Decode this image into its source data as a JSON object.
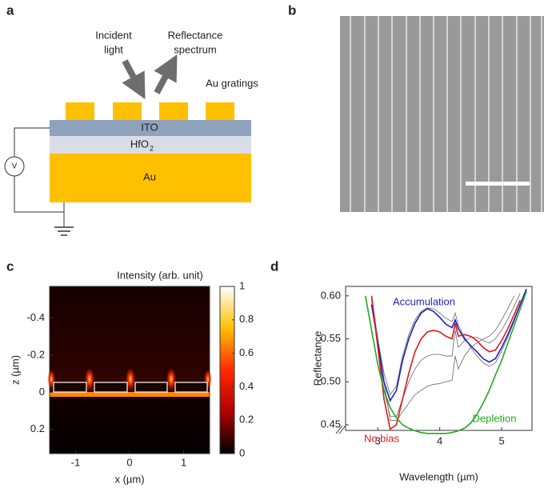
{
  "panel_labels": [
    "a",
    "b",
    "c",
    "d"
  ],
  "diagram": {
    "incident": [
      "Incident",
      "light"
    ],
    "reflectance": [
      "Reflectance",
      "spectrum"
    ],
    "gratings": "Au gratings",
    "ito": "ITO",
    "hfo": "HfO",
    "hfo_sub": "2",
    "au": "Au",
    "voltmeter": "V"
  },
  "chart_data": [
    {
      "type": "heatmap",
      "title": "Intensity (arb. unit)",
      "x_label": "x (µm)",
      "y_label": "z (µm)",
      "xlim": [
        -1.48,
        1.48
      ],
      "xticks": [
        -1,
        0,
        1
      ],
      "ylim": [
        -0.57,
        0.33
      ],
      "yticks": [
        -0.4,
        -0.2,
        0,
        0.2
      ],
      "y_reversed": true,
      "clim": [
        0,
        1
      ],
      "cticks": [
        0,
        0.2,
        0.4,
        0.6,
        0.8,
        1
      ],
      "colormap": [
        "#000000",
        "#b00000",
        "#ff2a00",
        "#ffc000",
        "#ffffff"
      ]
    },
    {
      "type": "line",
      "x_label": "Wavelength (µm)",
      "y_label": "Reflectance",
      "xlim": [
        2.48,
        5.49
      ],
      "xticks": [
        3,
        4,
        5
      ],
      "ylim": [
        0.4435,
        0.611
      ],
      "yticks": [
        0.45,
        {
          "value": 0.5,
          "label": "0.50"
        },
        0.55,
        {
          "value": 0.6,
          "label": "0.60"
        }
      ],
      "x": [
        2.8,
        2.9,
        3.0,
        3.1,
        3.2,
        3.3,
        3.4,
        3.5,
        3.6,
        3.7,
        3.8,
        3.9,
        4.0,
        4.1,
        4.2,
        4.25,
        4.3,
        4.4,
        4.5,
        4.6,
        4.7,
        4.8,
        4.9,
        5.0,
        5.1,
        5.2,
        5.3,
        5.4,
        5.5
      ],
      "series": [
        {
          "color": "#777777",
          "values": [
            null,
            0.595,
            0.54,
            0.49,
            0.46,
            0.46,
            0.48,
            0.5,
            0.515,
            0.525,
            0.53,
            0.532,
            0.532,
            0.53,
            0.53,
            0.56,
            0.54,
            0.548,
            0.552,
            0.552,
            0.548,
            0.545,
            0.55,
            0.56,
            0.573,
            0.588,
            0.603,
            null,
            null
          ]
        },
        {
          "color": "#777777",
          "values": [
            null,
            0.6,
            0.55,
            0.5,
            0.455,
            0.455,
            0.465,
            0.475,
            0.485,
            0.49,
            0.495,
            0.497,
            0.498,
            0.5,
            0.502,
            0.53,
            0.515,
            0.53,
            0.54,
            0.545,
            0.55,
            0.553,
            0.56,
            0.572,
            0.585,
            0.6,
            null,
            null,
            null
          ]
        },
        {
          "color": "#777777",
          "values": [
            null,
            0.59,
            0.55,
            0.51,
            0.485,
            0.495,
            0.53,
            0.555,
            0.572,
            0.582,
            0.586,
            0.585,
            0.58,
            0.574,
            0.57,
            0.58,
            0.566,
            0.552,
            0.54,
            0.53,
            0.522,
            0.518,
            0.522,
            0.536,
            0.552,
            0.57,
            0.59,
            0.606,
            null
          ]
        },
        {
          "name": "Accumulation",
          "color": "#1f1fcc",
          "values": [
            null,
            0.59,
            0.545,
            0.5,
            0.478,
            0.49,
            0.525,
            0.55,
            0.568,
            0.58,
            0.585,
            0.582,
            0.575,
            0.567,
            0.563,
            0.572,
            0.562,
            0.55,
            0.542,
            0.535,
            0.527,
            0.523,
            0.527,
            0.54,
            0.555,
            0.572,
            0.59,
            0.608,
            null
          ]
        },
        {
          "name": "No bias",
          "color": "#e01a1a",
          "values": [
            null,
            0.6,
            0.54,
            0.48,
            0.445,
            0.45,
            0.48,
            0.51,
            0.535,
            0.55,
            0.558,
            0.56,
            0.558,
            0.553,
            0.55,
            0.568,
            0.553,
            0.555,
            0.553,
            0.548,
            0.54,
            0.535,
            0.537,
            0.548,
            0.562,
            0.578,
            0.595,
            null,
            null
          ]
        },
        {
          "name": "Depletion",
          "color": "#22aa22",
          "values": [
            0.6,
            0.56,
            0.52,
            0.49,
            0.47,
            0.458,
            0.45,
            0.446,
            0.443,
            0.441,
            0.44,
            0.44,
            0.44,
            0.44,
            0.441,
            0.442,
            0.443,
            0.446,
            0.452,
            0.462,
            0.475,
            0.49,
            0.508,
            0.525,
            0.545,
            0.565,
            0.585,
            0.605,
            null
          ]
        }
      ]
    }
  ]
}
